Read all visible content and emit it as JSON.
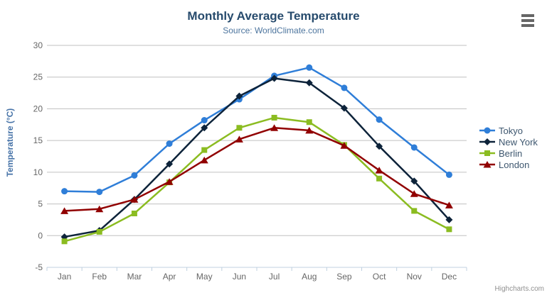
{
  "header": {
    "title": "Monthly Average Temperature",
    "subtitle": "Source: WorldClimate.com"
  },
  "toolbar": {
    "context_menu_icon": "hamburger-icon"
  },
  "credit": "Highcharts.com",
  "theme": {
    "background": "#ffffff",
    "title_color": "#274b6d",
    "subtitle_color": "#4d759e",
    "grid_color": "#c0c0c0",
    "axis_line_color": "#c0d0e0",
    "axis_label_color": "#666666",
    "yaxis_title_color": "#4572a7",
    "legend_text_color": "#3e576f",
    "credit_color": "#909090",
    "menu_icon_color": "#666666"
  },
  "chart_data": {
    "type": "line",
    "title": "Monthly Average Temperature",
    "subtitle": "Source: WorldClimate.com",
    "xlabel": "",
    "ylabel": "Temperature (°C)",
    "categories": [
      "Jan",
      "Feb",
      "Mar",
      "Apr",
      "May",
      "Jun",
      "Jul",
      "Aug",
      "Sep",
      "Oct",
      "Nov",
      "Dec"
    ],
    "series": [
      {
        "name": "Tokyo",
        "color": "#2f7ed8",
        "marker": "circle",
        "values": [
          7.0,
          6.9,
          9.5,
          14.5,
          18.2,
          21.5,
          25.2,
          26.5,
          23.3,
          18.3,
          13.9,
          9.6
        ]
      },
      {
        "name": "New York",
        "color": "#0d233a",
        "marker": "diamond",
        "values": [
          -0.2,
          0.8,
          5.7,
          11.3,
          17.0,
          22.0,
          24.8,
          24.1,
          20.1,
          14.1,
          8.6,
          2.5
        ]
      },
      {
        "name": "Berlin",
        "color": "#8bbc21",
        "marker": "square",
        "values": [
          -0.9,
          0.6,
          3.5,
          8.4,
          13.5,
          17.0,
          18.6,
          17.9,
          14.3,
          9.0,
          3.9,
          1.0
        ]
      },
      {
        "name": "London",
        "color": "#910000",
        "marker": "triangle",
        "values": [
          3.9,
          4.2,
          5.7,
          8.5,
          11.9,
          15.2,
          17.0,
          16.6,
          14.2,
          10.3,
          6.6,
          4.8
        ]
      }
    ],
    "ylim": [
      -5,
      30
    ],
    "ytick_interval": 5,
    "yticks": [
      -5,
      0,
      5,
      10,
      15,
      20,
      25,
      30
    ],
    "grid": true,
    "legend_position": "right"
  }
}
